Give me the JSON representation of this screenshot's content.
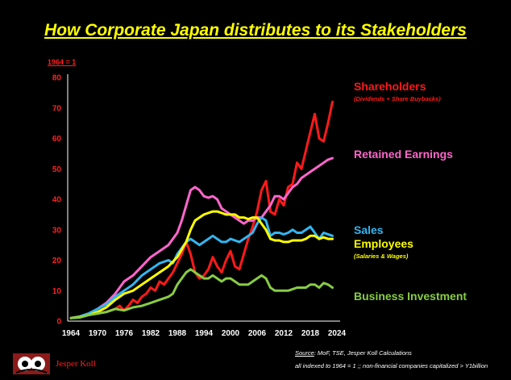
{
  "title": "How Corporate Japan distributes to its Stakeholders",
  "index_note": "1964 = 1",
  "brand": "Jesper Koll",
  "source_label": "Source",
  "source_text": ": MoF, TSE, Jesper Koll Calculations",
  "note": "all indexed to 1964 = 1  ;;  non-financial companies capitalized > Y1billion",
  "colors": {
    "background": "#000000",
    "title": "#FFFF00",
    "axis_text": "#FF2020",
    "shareholders": "#FF1A1A",
    "retained": "#FF66CC",
    "sales": "#33B5F0",
    "employees": "#FFFF00",
    "investment": "#88CC44"
  },
  "chart_data": {
    "type": "line",
    "title": "How Corporate Japan distributes to its Stakeholders",
    "xlim": [
      1964,
      2024
    ],
    "ylim": [
      0,
      80
    ],
    "xticks": [
      "1964",
      "1970",
      "1976",
      "1982",
      "1988",
      "1994",
      "2000",
      "2006",
      "2012",
      "2018",
      "2024"
    ],
    "yticks": [
      "0",
      "10",
      "20",
      "30",
      "40",
      "50",
      "60",
      "70",
      "80"
    ],
    "grid": false,
    "legend": "labels-right",
    "series": [
      {
        "key": "shareholders",
        "name": "Shareholders",
        "subtitle": "(Dividends + Share Buybacks)",
        "color": "#FF1A1A",
        "points": [
          [
            1964,
            1
          ],
          [
            1966,
            1.5
          ],
          [
            1968,
            2
          ],
          [
            1970,
            2.5
          ],
          [
            1972,
            3
          ],
          [
            1974,
            4
          ],
          [
            1975,
            5
          ],
          [
            1976,
            3.5
          ],
          [
            1977,
            5
          ],
          [
            1978,
            7
          ],
          [
            1979,
            6
          ],
          [
            1980,
            8
          ],
          [
            1981,
            9
          ],
          [
            1982,
            11
          ],
          [
            1983,
            10
          ],
          [
            1984,
            13
          ],
          [
            1985,
            12
          ],
          [
            1986,
            14
          ],
          [
            1987,
            16
          ],
          [
            1988,
            19
          ],
          [
            1989,
            22
          ],
          [
            1990,
            26
          ],
          [
            1991,
            22
          ],
          [
            1992,
            16
          ],
          [
            1993,
            14
          ],
          [
            1994,
            15
          ],
          [
            1995,
            17
          ],
          [
            1996,
            21
          ],
          [
            1997,
            18
          ],
          [
            1998,
            16
          ],
          [
            1999,
            20
          ],
          [
            2000,
            23
          ],
          [
            2001,
            18
          ],
          [
            2002,
            17
          ],
          [
            2003,
            22
          ],
          [
            2004,
            27
          ],
          [
            2005,
            31
          ],
          [
            2006,
            36
          ],
          [
            2007,
            43
          ],
          [
            2008,
            46
          ],
          [
            2009,
            36
          ],
          [
            2010,
            35
          ],
          [
            2011,
            40
          ],
          [
            2012,
            38
          ],
          [
            2013,
            44
          ],
          [
            2014,
            45
          ],
          [
            2015,
            52
          ],
          [
            2016,
            50
          ],
          [
            2017,
            56
          ],
          [
            2018,
            62
          ],
          [
            2019,
            68
          ],
          [
            2020,
            60
          ],
          [
            2021,
            59
          ],
          [
            2022,
            65
          ],
          [
            2023,
            72
          ]
        ]
      },
      {
        "key": "retained",
        "name": "Retained Earnings",
        "color": "#FF66CC",
        "points": [
          [
            1964,
            1
          ],
          [
            1966,
            1.5
          ],
          [
            1968,
            2.5
          ],
          [
            1970,
            4
          ],
          [
            1972,
            6
          ],
          [
            1974,
            9
          ],
          [
            1976,
            13
          ],
          [
            1978,
            15
          ],
          [
            1980,
            18
          ],
          [
            1982,
            21
          ],
          [
            1984,
            23
          ],
          [
            1986,
            25
          ],
          [
            1988,
            29
          ],
          [
            1989,
            33
          ],
          [
            1990,
            38
          ],
          [
            1991,
            43
          ],
          [
            1992,
            44
          ],
          [
            1993,
            43
          ],
          [
            1994,
            41
          ],
          [
            1995,
            40.5
          ],
          [
            1996,
            41
          ],
          [
            1997,
            40
          ],
          [
            1998,
            37
          ],
          [
            1999,
            36
          ],
          [
            2000,
            35
          ],
          [
            2001,
            34
          ],
          [
            2002,
            33
          ],
          [
            2003,
            32
          ],
          [
            2004,
            33
          ],
          [
            2005,
            33
          ],
          [
            2006,
            34
          ],
          [
            2007,
            34
          ],
          [
            2008,
            36
          ],
          [
            2009,
            38
          ],
          [
            2010,
            41
          ],
          [
            2011,
            41
          ],
          [
            2012,
            40
          ],
          [
            2013,
            42
          ],
          [
            2014,
            44
          ],
          [
            2015,
            45
          ],
          [
            2016,
            47
          ],
          [
            2017,
            48
          ],
          [
            2018,
            49
          ],
          [
            2019,
            50
          ],
          [
            2020,
            51
          ],
          [
            2021,
            52
          ],
          [
            2022,
            53
          ],
          [
            2023,
            53.5
          ]
        ]
      },
      {
        "key": "sales",
        "name": "Sales",
        "color": "#33B5F0",
        "points": [
          [
            1964,
            1
          ],
          [
            1966,
            1.5
          ],
          [
            1968,
            2.5
          ],
          [
            1970,
            4
          ],
          [
            1972,
            5.5
          ],
          [
            1974,
            8
          ],
          [
            1976,
            10
          ],
          [
            1978,
            12
          ],
          [
            1980,
            15
          ],
          [
            1982,
            17
          ],
          [
            1984,
            19
          ],
          [
            1986,
            20
          ],
          [
            1987,
            19
          ],
          [
            1988,
            22
          ],
          [
            1989,
            24
          ],
          [
            1990,
            26
          ],
          [
            1991,
            27
          ],
          [
            1992,
            26
          ],
          [
            1993,
            25
          ],
          [
            1994,
            26
          ],
          [
            1995,
            27
          ],
          [
            1996,
            28
          ],
          [
            1997,
            27
          ],
          [
            1998,
            26
          ],
          [
            1999,
            26
          ],
          [
            2000,
            27
          ],
          [
            2001,
            26.5
          ],
          [
            2002,
            26
          ],
          [
            2003,
            27
          ],
          [
            2004,
            28
          ],
          [
            2005,
            29
          ],
          [
            2006,
            32
          ],
          [
            2007,
            34
          ],
          [
            2008,
            33
          ],
          [
            2009,
            28
          ],
          [
            2010,
            29
          ],
          [
            2011,
            29
          ],
          [
            2012,
            28.5
          ],
          [
            2013,
            29
          ],
          [
            2014,
            30
          ],
          [
            2015,
            29
          ],
          [
            2016,
            29
          ],
          [
            2017,
            30
          ],
          [
            2018,
            31
          ],
          [
            2019,
            29
          ],
          [
            2020,
            27
          ],
          [
            2021,
            29
          ],
          [
            2022,
            28.5
          ],
          [
            2023,
            28
          ]
        ]
      },
      {
        "key": "employees",
        "name": "Employees",
        "subtitle": "(Salaries & Wages)",
        "color": "#FFFF00",
        "points": [
          [
            1964,
            1
          ],
          [
            1966,
            1.3
          ],
          [
            1968,
            2
          ],
          [
            1970,
            3
          ],
          [
            1972,
            4.5
          ],
          [
            1974,
            7
          ],
          [
            1976,
            9
          ],
          [
            1978,
            10
          ],
          [
            1980,
            12
          ],
          [
            1982,
            14
          ],
          [
            1984,
            16
          ],
          [
            1986,
            18
          ],
          [
            1988,
            21
          ],
          [
            1990,
            26
          ],
          [
            1991,
            30
          ],
          [
            1992,
            33
          ],
          [
            1993,
            34
          ],
          [
            1994,
            35
          ],
          [
            1995,
            35.5
          ],
          [
            1996,
            36
          ],
          [
            1997,
            36
          ],
          [
            1998,
            35.5
          ],
          [
            1999,
            35
          ],
          [
            2000,
            35
          ],
          [
            2001,
            35
          ],
          [
            2002,
            34
          ],
          [
            2003,
            34
          ],
          [
            2004,
            33.5
          ],
          [
            2005,
            34
          ],
          [
            2006,
            34
          ],
          [
            2007,
            32
          ],
          [
            2008,
            30
          ],
          [
            2009,
            27
          ],
          [
            2010,
            26.5
          ],
          [
            2011,
            26.5
          ],
          [
            2012,
            26
          ],
          [
            2013,
            26
          ],
          [
            2014,
            26.5
          ],
          [
            2015,
            26.5
          ],
          [
            2016,
            26.5
          ],
          [
            2017,
            27
          ],
          [
            2018,
            28
          ],
          [
            2019,
            28
          ],
          [
            2020,
            27
          ],
          [
            2021,
            27.5
          ],
          [
            2022,
            27
          ],
          [
            2023,
            27
          ]
        ]
      },
      {
        "key": "investment",
        "name": "Business Investment",
        "color": "#88CC44",
        "points": [
          [
            1964,
            1
          ],
          [
            1966,
            1.2
          ],
          [
            1968,
            2
          ],
          [
            1970,
            2.5
          ],
          [
            1972,
            3
          ],
          [
            1974,
            4
          ],
          [
            1976,
            3.5
          ],
          [
            1978,
            4.5
          ],
          [
            1980,
            5
          ],
          [
            1982,
            6
          ],
          [
            1984,
            7
          ],
          [
            1986,
            8
          ],
          [
            1987,
            9
          ],
          [
            1988,
            12
          ],
          [
            1989,
            14
          ],
          [
            1990,
            16
          ],
          [
            1991,
            17
          ],
          [
            1992,
            16
          ],
          [
            1993,
            15
          ],
          [
            1994,
            14
          ],
          [
            1995,
            14
          ],
          [
            1996,
            15
          ],
          [
            1997,
            14
          ],
          [
            1998,
            13
          ],
          [
            1999,
            14
          ],
          [
            2000,
            14
          ],
          [
            2001,
            13
          ],
          [
            2002,
            12
          ],
          [
            2003,
            12
          ],
          [
            2004,
            12
          ],
          [
            2005,
            13
          ],
          [
            2006,
            14
          ],
          [
            2007,
            15
          ],
          [
            2008,
            14
          ],
          [
            2009,
            11
          ],
          [
            2010,
            10
          ],
          [
            2011,
            10
          ],
          [
            2012,
            10
          ],
          [
            2013,
            10
          ],
          [
            2014,
            10.5
          ],
          [
            2015,
            11
          ],
          [
            2016,
            11
          ],
          [
            2017,
            11
          ],
          [
            2018,
            12
          ],
          [
            2019,
            12
          ],
          [
            2020,
            11
          ],
          [
            2021,
            12.5
          ],
          [
            2022,
            12
          ],
          [
            2023,
            11
          ]
        ]
      }
    ]
  }
}
